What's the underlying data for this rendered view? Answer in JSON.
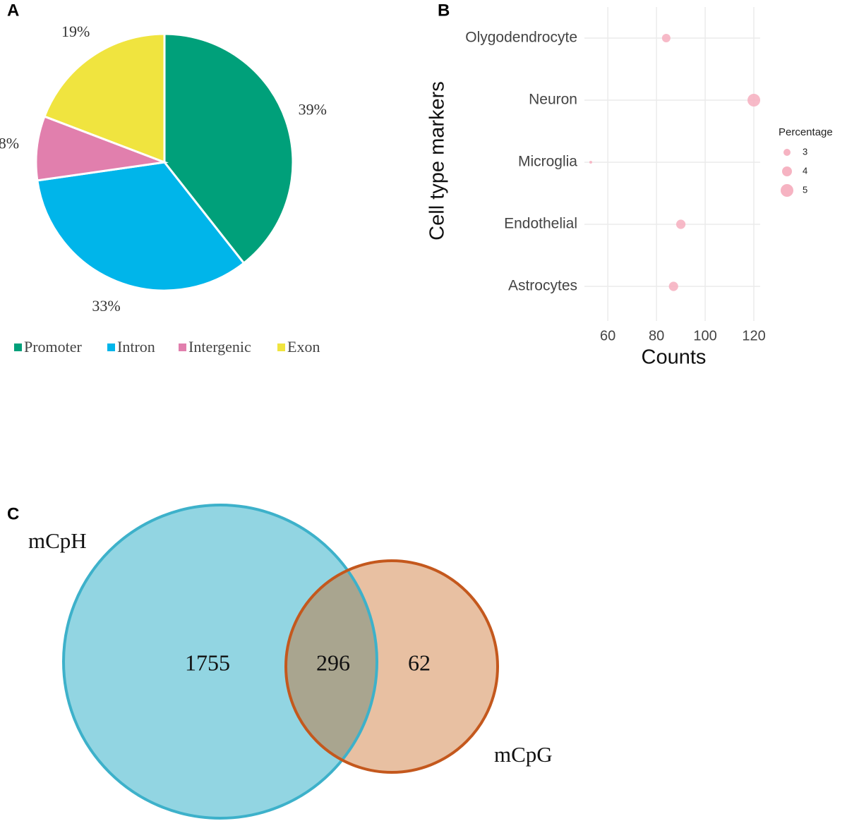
{
  "chart_data": [
    {
      "type": "pie",
      "panel": "A",
      "categories": [
        "Promoter",
        "Intron",
        "Intergenic",
        "Exon"
      ],
      "values": [
        39,
        33,
        8,
        19
      ],
      "value_labels": [
        "39%",
        "33%",
        "8%",
        "19%"
      ],
      "colors": [
        "#00a07a",
        "#00b5ea",
        "#e17fad",
        "#f0e43f"
      ]
    },
    {
      "type": "scatter",
      "panel": "B",
      "categories": [
        "Olygodendrocyte",
        "Neuron",
        "Microglia",
        "Endothelial",
        "Astrocytes"
      ],
      "values": [
        84,
        120,
        53,
        90,
        87
      ],
      "sizes": [
        3.5,
        5,
        1.5,
        3.8,
        3.8
      ],
      "size_name": "Percentage",
      "size_legend": [
        3,
        4,
        5
      ],
      "color": "#f6b3c2",
      "xlabel": "Counts",
      "ylabel": "Cell type markers",
      "xlim": [
        50.4,
        122.6
      ],
      "xticks": [
        60,
        80,
        100,
        120
      ],
      "grid": true
    },
    {
      "type": "venn",
      "panel": "C",
      "sets": [
        {
          "name": "mCpH",
          "color": "#92d5e2",
          "edge": "#3db1ca"
        },
        {
          "name": "mCpG",
          "color": "#e8c0a2",
          "edge": "#c4581d"
        }
      ],
      "only": [
        1755,
        62
      ],
      "both": 296,
      "overlap_color": "#a9a58f"
    }
  ]
}
